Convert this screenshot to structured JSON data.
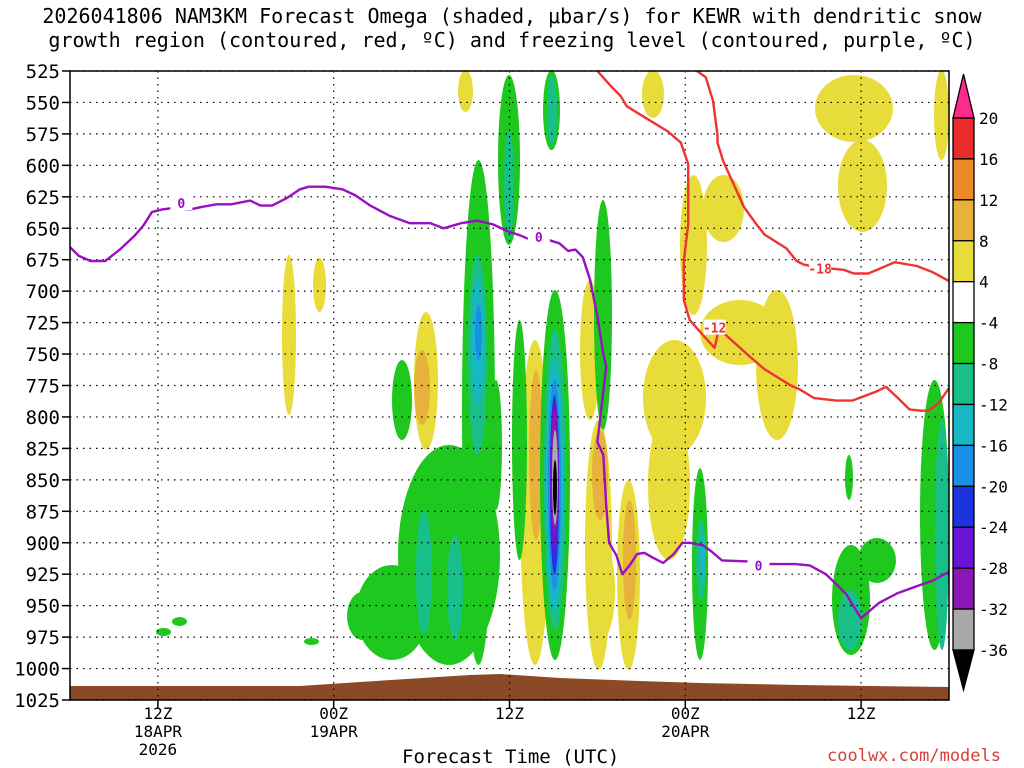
{
  "title": "2026041806 NAM3KM Forecast Omega (shaded, μbar/s) for KEWR with dendritic snow\ngrowth region (contoured, red, ºC) and freezing level (contoured, purple, ºC)",
  "credit": "coolwx.com/models",
  "chart_data": {
    "type": "heatmap",
    "xlabel": "Forecast Time (UTC)",
    "ylabel": "",
    "y_ticks": [
      525,
      550,
      575,
      600,
      625,
      650,
      675,
      700,
      725,
      750,
      775,
      800,
      825,
      850,
      875,
      900,
      925,
      950,
      975,
      1000,
      1025
    ],
    "ylim": [
      1025,
      525
    ],
    "xlim": [
      6,
      66
    ],
    "x_ticks": [
      {
        "hour": 12,
        "label": "12Z",
        "sub": [
          "18APR",
          "2026"
        ]
      },
      {
        "hour": 24,
        "label": "00Z",
        "sub": [
          "19APR"
        ]
      },
      {
        "hour": 36,
        "label": "12Z",
        "sub": []
      },
      {
        "hour": 48,
        "label": "00Z",
        "sub": [
          "20APR"
        ]
      },
      {
        "hour": 60,
        "label": "12Z",
        "sub": []
      }
    ],
    "grid": true,
    "colorbar": {
      "labels": [
        "20",
        "16",
        "12",
        "8",
        "4",
        "-4",
        "-8",
        "-12",
        "-16",
        "-20",
        "-24",
        "-28",
        "-32",
        "-36"
      ],
      "colors": [
        "#ff2a8e",
        "#ea2b2b",
        "#ec8a2a",
        "#e7b23c",
        "#e8dc3a",
        "#ffffff",
        "#1ec81e",
        "#19bf88",
        "#18b7c6",
        "#1a8fe6",
        "#1c33e0",
        "#6a14d6",
        "#8a17b4",
        "#a9a9a9",
        "#000000"
      ]
    },
    "surface_color": "#8b4a25",
    "series": [
      {
        "contour": "freezing_level",
        "color": "#9a10c0",
        "labels": [
          {
            "text": "0",
            "x": 13.6,
            "y": 630
          },
          {
            "text": "0",
            "x": 38.0,
            "y": 657
          },
          {
            "text": "0",
            "x": 53.0,
            "y": 918
          }
        ],
        "x": [
          6.0,
          6.6,
          7.4,
          8.4,
          9.4,
          10.4,
          11.0,
          11.6,
          12.3,
          13.0,
          14.2,
          15.0,
          16.0,
          17.0,
          18.3,
          19.0,
          19.8,
          20.8,
          21.7,
          22.3,
          23.4,
          24.6,
          25.5,
          26.5,
          27.8,
          29.2,
          30.6,
          31.5,
          32.7,
          33.8,
          34.9,
          35.8,
          36.8,
          37.6,
          38.6,
          39.4,
          40.0,
          40.5,
          41.0,
          41.5,
          42.0,
          42.4,
          42.6,
          42.4,
          42.2,
          42.0,
          42.4,
          42.6,
          42.8,
          43.3,
          43.7,
          44.2,
          44.7,
          45.2,
          45.8,
          46.5,
          47.2,
          47.8,
          48.3,
          49.2,
          49.8,
          50.5,
          52.5,
          53.5,
          55.5,
          56.5,
          57.6,
          58.4,
          59.0,
          59.4,
          60.0,
          61.2,
          62.5,
          63.7,
          64.9,
          66.0
        ],
        "y": [
          665,
          672,
          676,
          676,
          667,
          656,
          648,
          637,
          635,
          634,
          635,
          633,
          631,
          631,
          628,
          632,
          632,
          626,
          619,
          617,
          617,
          619,
          624,
          632,
          640,
          646,
          646,
          650,
          646,
          644,
          647,
          652,
          656,
          660,
          659,
          662,
          668,
          667,
          673,
          691,
          720,
          750,
          760,
          780,
          800,
          820,
          830,
          870,
          900,
          910,
          925,
          918,
          909,
          908,
          912,
          916,
          909,
          900,
          900,
          902,
          907,
          914,
          915,
          917,
          917,
          918,
          925,
          934,
          941,
          949,
          960,
          948,
          940,
          935,
          930,
          923
        ]
      },
      {
        "contour": "dgz_minus12",
        "color": "#ee3333",
        "labels": [
          {
            "text": "-12",
            "x": 50.0,
            "y": 729
          }
        ],
        "x": [
          42.0,
          43.0,
          43.6,
          44.0,
          45.4,
          46.8,
          47.7,
          48.2,
          48.2,
          47.9,
          47.9,
          48.3,
          49.6,
          50.0,
          50.3,
          52.4,
          53.4,
          55.2,
          55.8,
          56.8,
          58.3,
          59.4,
          61.0,
          61.7,
          62.6,
          63.3,
          64.1,
          64.6,
          65.3,
          66.0
        ],
        "y": [
          525,
          538,
          545,
          553,
          563,
          573,
          582,
          599,
          647,
          676,
          707,
          723,
          740,
          745,
          730,
          752,
          762,
          775,
          778,
          785,
          787,
          787,
          780,
          776,
          786,
          794,
          795,
          795,
          789,
          777
        ]
      },
      {
        "contour": "dgz_minus18",
        "color": "#ee3333",
        "labels": [
          {
            "text": "-18",
            "x": 57.2,
            "y": 682
          }
        ],
        "x": [
          48.8,
          49.4,
          49.9,
          50.2,
          50.2,
          50.6,
          52.0,
          52.8,
          53.4,
          54.9,
          55.6,
          56.1,
          57.0,
          58.8,
          59.5,
          60.5,
          62.3,
          63.8,
          64.9,
          66.0
        ],
        "y": [
          525,
          530,
          549,
          576,
          582,
          597,
          633,
          646,
          655,
          666,
          676,
          679,
          681,
          683,
          686,
          686,
          677,
          680,
          685,
          692
        ]
      }
    ]
  }
}
